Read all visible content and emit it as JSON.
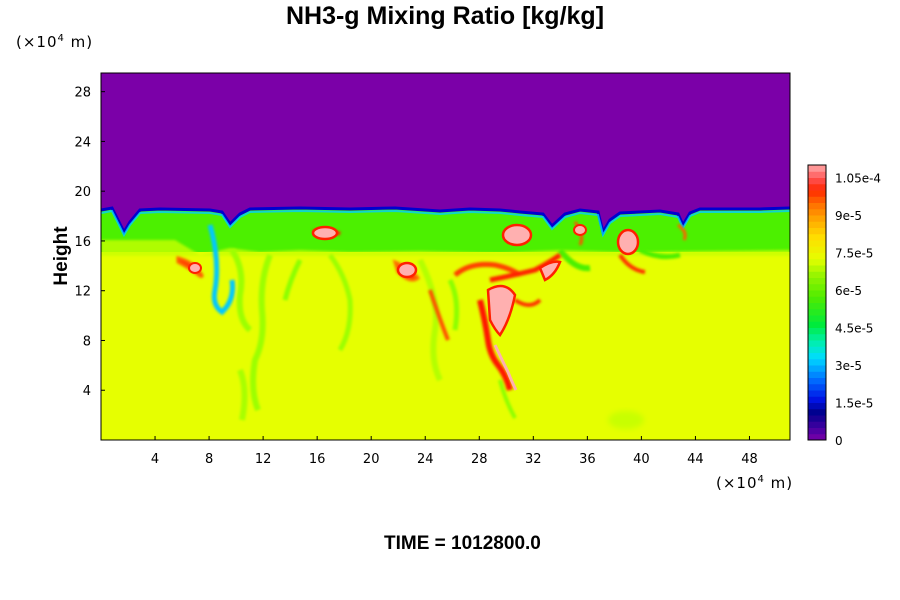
{
  "chart_data": {
    "type": "heatmap",
    "title": "NH3-g Mixing Ratio [kg/kg]",
    "ylabel": "Height",
    "x_unit": {
      "pre": "(×10",
      "exp": "4",
      "post": " m)"
    },
    "y_unit": {
      "pre": "(×10",
      "exp": "4",
      "post": " m)"
    },
    "x_ticks": [
      4,
      8,
      12,
      16,
      20,
      24,
      28,
      32,
      36,
      40,
      44,
      48
    ],
    "y_ticks": [
      4,
      8,
      12,
      16,
      20,
      24,
      28
    ],
    "xlim": [
      0,
      51
    ],
    "ylim": [
      0,
      29.5
    ],
    "colorbar": {
      "min": 0,
      "max": 0.00011,
      "tick_values": [
        0,
        1.5e-05,
        3e-05,
        4.5e-05,
        6e-05,
        7.5e-05,
        9e-05,
        0.000105
      ],
      "tick_labels": [
        "0",
        "1.5e-5",
        "3e-5",
        "4.5e-5",
        "6e-5",
        "7.5e-5",
        "9e-5",
        "1.05e-4"
      ]
    },
    "colors": {
      "upper_layer": "#7b00a8",
      "lower_layer": "#e6ff00",
      "mid_layer": "#4cf000",
      "boundary": "#0000d0"
    },
    "time_label": "TIME = 1012800.0"
  }
}
